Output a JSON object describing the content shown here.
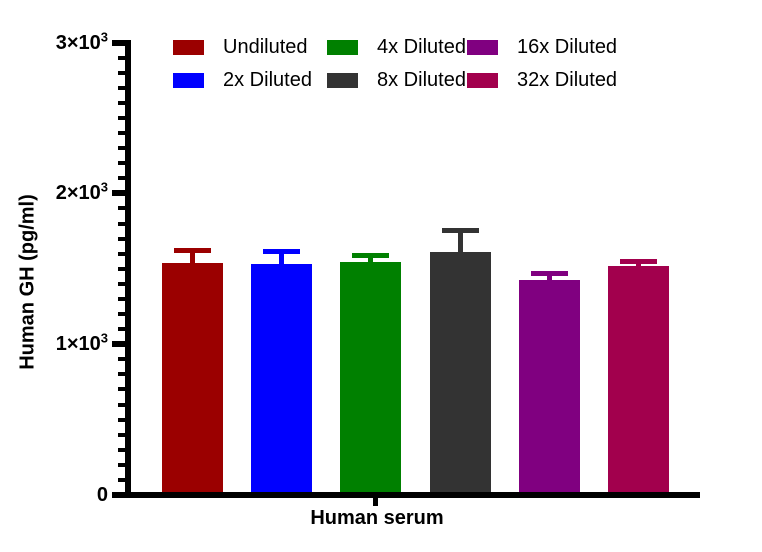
{
  "chart_data": {
    "type": "bar",
    "title": "",
    "xlabel": "Human serum",
    "ylabel": "Human GH (pg/ml)",
    "ylim": [
      0,
      3000
    ],
    "minor_tick_step": 100,
    "grid": false,
    "legend_position": "top",
    "axis_color": "#000000",
    "yticks": [
      {
        "value": 0,
        "label": "0",
        "sup": ""
      },
      {
        "value": 1000,
        "label": "1×10",
        "sup": "3"
      },
      {
        "value": 2000,
        "label": "2×10",
        "sup": "3"
      },
      {
        "value": 3000,
        "label": "3×10",
        "sup": "3"
      }
    ],
    "categories": [
      "Human serum"
    ],
    "series": [
      {
        "name": "Undiluted",
        "color": "#9B0000",
        "value": 1540,
        "error": 85
      },
      {
        "name": "2x Diluted",
        "color": "#0000FF",
        "value": 1530,
        "error": 85
      },
      {
        "name": "4x Diluted",
        "color": "#008000",
        "value": 1545,
        "error": 45
      },
      {
        "name": "8x Diluted",
        "color": "#333333",
        "value": 1610,
        "error": 145
      },
      {
        "name": "16x Diluted",
        "color": "#800080",
        "value": 1425,
        "error": 45
      },
      {
        "name": "32x Diluted",
        "color": "#A2004D",
        "value": 1520,
        "error": 35
      }
    ]
  }
}
